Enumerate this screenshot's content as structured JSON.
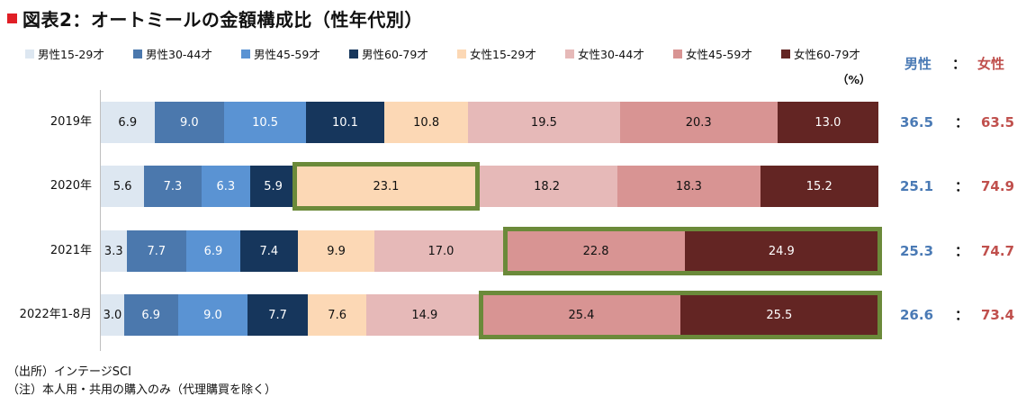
{
  "title": "図表2：オートミールの金額構成比（性年代別）",
  "colors": {
    "title_mark": "#e01f26",
    "highlight": "#6b8a3a",
    "male_text": "#4a7ab5",
    "female_text": "#c0504d",
    "label_dark": "#111111",
    "label_light": "#ffffff"
  },
  "unit_label": "（%）",
  "gender_header": {
    "male": "男性",
    "colon": "：",
    "female": "女性"
  },
  "chart_data": {
    "type": "bar",
    "orientation": "horizontal-stacked-100",
    "series": [
      {
        "name": "男性15-29才",
        "color": "#dde7f1",
        "values": [
          6.9,
          5.6,
          3.3,
          3.0
        ]
      },
      {
        "name": "男性30-44才",
        "color": "#4b78ad",
        "values": [
          9.0,
          7.3,
          7.7,
          6.9
        ]
      },
      {
        "name": "男性45-59才",
        "color": "#5a93d3",
        "values": [
          10.5,
          6.3,
          6.9,
          9.0
        ]
      },
      {
        "name": "男性60-79才",
        "color": "#16365c",
        "values": [
          10.1,
          5.9,
          7.4,
          7.7
        ]
      },
      {
        "name": "女性15-29才",
        "color": "#fcd8b5",
        "values": [
          10.8,
          23.1,
          9.9,
          7.6
        ]
      },
      {
        "name": "女性30-44才",
        "color": "#e6b9b8",
        "values": [
          19.5,
          18.2,
          17.0,
          14.9
        ]
      },
      {
        "name": "女性45-59才",
        "color": "#d89493",
        "values": [
          20.3,
          18.3,
          22.8,
          25.4
        ]
      },
      {
        "name": "女性60-79才",
        "color": "#632523",
        "values": [
          13.0,
          15.2,
          24.9,
          25.5
        ]
      }
    ],
    "categories": [
      "2019年",
      "2020年",
      "2021年",
      "2022年1-8月"
    ],
    "totals": {
      "male": [
        "36.5",
        "25.1",
        "25.3",
        "26.6"
      ],
      "female": [
        "63.5",
        "74.9",
        "74.7",
        "73.4"
      ]
    },
    "highlights": [
      {
        "row": 1,
        "from_series": 4,
        "to_series": 4
      },
      {
        "row": 2,
        "from_series": 6,
        "to_series": 7
      },
      {
        "row": 3,
        "from_series": 6,
        "to_series": 7
      }
    ],
    "legend_position": "top"
  },
  "notes": [
    "（出所）インテージSCI",
    "（注）本人用・共用の購入のみ（代理購買を除く）"
  ]
}
